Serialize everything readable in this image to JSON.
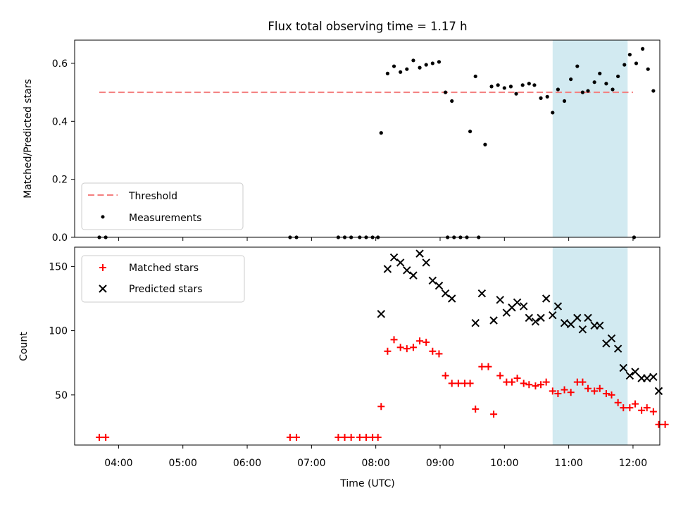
{
  "figure_title": "Flux total observing time = 1.17 h",
  "colors": {
    "threshold": "#f47f7f",
    "measurements": "#000000",
    "matched": "#ff0000",
    "predicted": "#000000",
    "highlight": "#add8e6"
  },
  "chart_data": [
    {
      "type": "scatter",
      "title": "Flux total observing time = 1.17 h",
      "xlabel": "",
      "ylabel": "Matched/Predicted stars",
      "xlim": [
        "03:19",
        "12:25"
      ],
      "ylim": [
        0,
        0.68
      ],
      "yticks": [
        0.0,
        0.2,
        0.4,
        0.6
      ],
      "yticklabels": [
        "0.0",
        "0.2",
        "0.4",
        "0.6"
      ],
      "legend": "lower-left",
      "highlight_span": [
        "10:45",
        "11:55"
      ],
      "threshold": {
        "name": "Threshold",
        "y": 0.5,
        "x_range": [
          "03:42",
          "12:00"
        ]
      },
      "series": [
        {
          "name": "Measurements",
          "points": [
            [
              "03:42",
              0
            ],
            [
              "03:48",
              0
            ],
            [
              "06:40",
              0
            ],
            [
              "06:46",
              0
            ],
            [
              "07:25",
              0
            ],
            [
              "07:31",
              0
            ],
            [
              "07:37",
              0
            ],
            [
              "07:45",
              0
            ],
            [
              "07:51",
              0
            ],
            [
              "07:57",
              0
            ],
            [
              "08:02",
              0
            ],
            [
              "08:05",
              0.36
            ],
            [
              "08:11",
              0.565
            ],
            [
              "08:17",
              0.59
            ],
            [
              "08:23",
              0.57
            ],
            [
              "08:29",
              0.58
            ],
            [
              "08:35",
              0.61
            ],
            [
              "08:41",
              0.585
            ],
            [
              "08:47",
              0.595
            ],
            [
              "08:53",
              0.6
            ],
            [
              "08:59",
              0.605
            ],
            [
              "09:05",
              0.5
            ],
            [
              "09:11",
              0.47
            ],
            [
              "09:07",
              0
            ],
            [
              "09:13",
              0
            ],
            [
              "09:19",
              0
            ],
            [
              "09:25",
              0
            ],
            [
              "09:36",
              0
            ],
            [
              "09:28",
              0.365
            ],
            [
              "09:33",
              0.555
            ],
            [
              "09:42",
              0.32
            ],
            [
              "09:48",
              0.52
            ],
            [
              "09:54",
              0.525
            ],
            [
              "10:00",
              0.515
            ],
            [
              "10:06",
              0.52
            ],
            [
              "10:11",
              0.495
            ],
            [
              "10:17",
              0.525
            ],
            [
              "10:23",
              0.53
            ],
            [
              "10:28",
              0.525
            ],
            [
              "10:34",
              0.48
            ],
            [
              "10:40",
              0.485
            ],
            [
              "10:45",
              0.43
            ],
            [
              "10:50",
              0.51
            ],
            [
              "10:56",
              0.47
            ],
            [
              "11:02",
              0.545
            ],
            [
              "11:08",
              0.59
            ],
            [
              "11:13",
              0.5
            ],
            [
              "11:18",
              0.505
            ],
            [
              "11:24",
              0.535
            ],
            [
              "11:29",
              0.565
            ],
            [
              "11:35",
              0.53
            ],
            [
              "11:41",
              0.51
            ],
            [
              "11:46",
              0.555
            ],
            [
              "11:52",
              0.595
            ],
            [
              "11:57",
              0.63
            ],
            [
              "12:03",
              0.6
            ],
            [
              "12:09",
              0.65
            ],
            [
              "12:14",
              0.58
            ],
            [
              "12:19",
              0.505
            ],
            [
              "12:01",
              0
            ]
          ]
        }
      ]
    },
    {
      "type": "scatter",
      "title": "",
      "xlabel": "Time (UTC)",
      "ylabel": "Count",
      "xlim": [
        "03:19",
        "12:25"
      ],
      "ylim": [
        11,
        165
      ],
      "yticks": [
        50,
        100,
        150
      ],
      "yticklabels": [
        "50",
        "100",
        "150"
      ],
      "xticks": [
        "04:00",
        "05:00",
        "06:00",
        "07:00",
        "08:00",
        "09:00",
        "10:00",
        "11:00",
        "12:00"
      ],
      "legend": "upper-left",
      "highlight_span": [
        "10:45",
        "11:55"
      ],
      "series": [
        {
          "name": "Matched stars",
          "marker": "plus",
          "points": [
            [
              "03:42",
              17
            ],
            [
              "03:48",
              17
            ],
            [
              "06:40",
              17
            ],
            [
              "06:46",
              17
            ],
            [
              "07:25",
              17
            ],
            [
              "07:31",
              17
            ],
            [
              "07:37",
              17
            ],
            [
              "07:45",
              17
            ],
            [
              "07:51",
              17
            ],
            [
              "07:57",
              17
            ],
            [
              "08:02",
              17
            ],
            [
              "08:05",
              41
            ],
            [
              "08:11",
              84
            ],
            [
              "08:17",
              93
            ],
            [
              "08:23",
              87
            ],
            [
              "08:29",
              86
            ],
            [
              "08:35",
              87
            ],
            [
              "08:41",
              92
            ],
            [
              "08:47",
              91
            ],
            [
              "08:53",
              84
            ],
            [
              "08:59",
              82
            ],
            [
              "09:05",
              65
            ],
            [
              "09:11",
              59
            ],
            [
              "09:17",
              59
            ],
            [
              "09:23",
              59
            ],
            [
              "09:28",
              59
            ],
            [
              "09:33",
              39
            ],
            [
              "09:39",
              72
            ],
            [
              "09:45",
              72
            ],
            [
              "09:50",
              35
            ],
            [
              "09:56",
              65
            ],
            [
              "10:02",
              60
            ],
            [
              "10:07",
              60
            ],
            [
              "10:12",
              63
            ],
            [
              "10:18",
              59
            ],
            [
              "10:23",
              58
            ],
            [
              "10:29",
              57
            ],
            [
              "10:34",
              58
            ],
            [
              "10:39",
              60
            ],
            [
              "10:45",
              53
            ],
            [
              "10:50",
              51
            ],
            [
              "10:56",
              54
            ],
            [
              "11:02",
              52
            ],
            [
              "11:08",
              60
            ],
            [
              "11:13",
              60
            ],
            [
              "11:18",
              55
            ],
            [
              "11:24",
              53
            ],
            [
              "11:29",
              55
            ],
            [
              "11:35",
              51
            ],
            [
              "11:40",
              50
            ],
            [
              "11:46",
              44
            ],
            [
              "11:51",
              40
            ],
            [
              "11:57",
              40
            ],
            [
              "12:02",
              43
            ],
            [
              "12:08",
              38
            ],
            [
              "12:13",
              40
            ],
            [
              "12:19",
              37
            ],
            [
              "12:24",
              27
            ],
            [
              "12:30",
              27
            ]
          ]
        },
        {
          "name": "Predicted stars",
          "marker": "x",
          "points": [
            [
              "08:05",
              113
            ],
            [
              "08:11",
              148
            ],
            [
              "08:17",
              157
            ],
            [
              "08:23",
              153
            ],
            [
              "08:29",
              147
            ],
            [
              "08:35",
              143
            ],
            [
              "08:41",
              160
            ],
            [
              "08:47",
              153
            ],
            [
              "08:53",
              139
            ],
            [
              "08:59",
              135
            ],
            [
              "09:05",
              129
            ],
            [
              "09:11",
              125
            ],
            [
              "09:33",
              106
            ],
            [
              "09:39",
              129
            ],
            [
              "09:50",
              108
            ],
            [
              "09:56",
              124
            ],
            [
              "10:02",
              114
            ],
            [
              "10:07",
              118
            ],
            [
              "10:12",
              122
            ],
            [
              "10:18",
              119
            ],
            [
              "10:23",
              110
            ],
            [
              "10:29",
              107
            ],
            [
              "10:34",
              110
            ],
            [
              "10:39",
              125
            ],
            [
              "10:45",
              112
            ],
            [
              "10:50",
              119
            ],
            [
              "10:56",
              106
            ],
            [
              "11:02",
              105
            ],
            [
              "11:08",
              110
            ],
            [
              "11:13",
              101
            ],
            [
              "11:18",
              110
            ],
            [
              "11:24",
              104
            ],
            [
              "11:29",
              104
            ],
            [
              "11:35",
              90
            ],
            [
              "11:40",
              94
            ],
            [
              "11:46",
              86
            ],
            [
              "11:51",
              71
            ],
            [
              "11:57",
              65
            ],
            [
              "12:02",
              68
            ],
            [
              "12:08",
              63
            ],
            [
              "12:13",
              63
            ],
            [
              "12:19",
              64
            ],
            [
              "12:24",
              53
            ]
          ]
        }
      ]
    }
  ]
}
